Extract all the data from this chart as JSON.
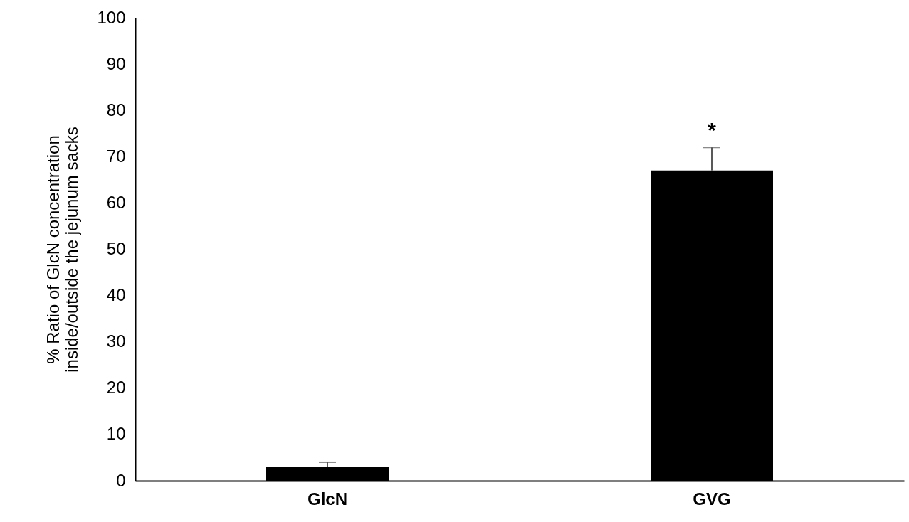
{
  "chart_data": {
    "type": "bar",
    "ylabel": "% Ratio of GlcN concentration\ninside/outside the jejunum sacks",
    "categories": [
      "GlcN",
      "GVG"
    ],
    "values": [
      3,
      67
    ],
    "errors": [
      [
        3,
        4
      ],
      [
        67,
        72
      ]
    ],
    "color": "#000000",
    "ylim": [
      0,
      100
    ],
    "yticks": [
      0,
      10,
      20,
      30,
      40,
      50,
      60,
      70,
      80,
      90,
      100
    ],
    "grid": false,
    "annotations": [
      "*"
    ]
  }
}
